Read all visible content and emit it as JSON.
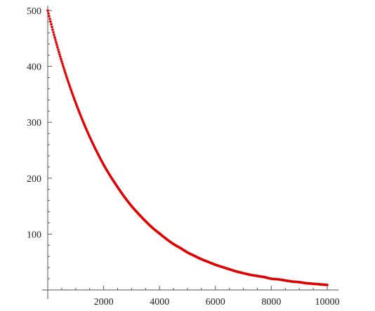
{
  "chart_data": {
    "type": "scatter",
    "title": "",
    "xlabel": "",
    "ylabel": "",
    "xlim": [
      0,
      10000
    ],
    "ylim": [
      0,
      500
    ],
    "x_ticks": [
      2000,
      4000,
      6000,
      8000,
      10000
    ],
    "y_ticks": [
      100,
      200,
      300,
      400,
      500
    ],
    "grid": false,
    "legend": "none",
    "series": [
      {
        "color": "#e00000",
        "x": [
          0,
          250,
          500,
          750,
          1000,
          1250,
          1500,
          1750,
          2000,
          2250,
          2500,
          2750,
          3000,
          3250,
          3500,
          3750,
          4000,
          4250,
          4500,
          4750,
          5000,
          5250,
          5500,
          5750,
          6000,
          6250,
          6500,
          6750,
          7000,
          7250,
          7500,
          7750,
          8000,
          8250,
          8500,
          8750,
          9000,
          9250,
          9500,
          9750,
          10000
        ],
        "y": [
          500,
          452,
          409,
          370,
          335,
          303,
          274,
          248,
          224,
          203,
          184,
          166,
          150,
          136,
          123,
          111,
          101,
          91,
          82,
          75,
          67,
          61,
          55,
          50,
          45,
          41,
          37,
          33,
          30,
          27,
          25,
          23,
          20,
          19,
          17,
          15,
          14,
          12,
          11,
          10,
          9
        ]
      }
    ]
  }
}
